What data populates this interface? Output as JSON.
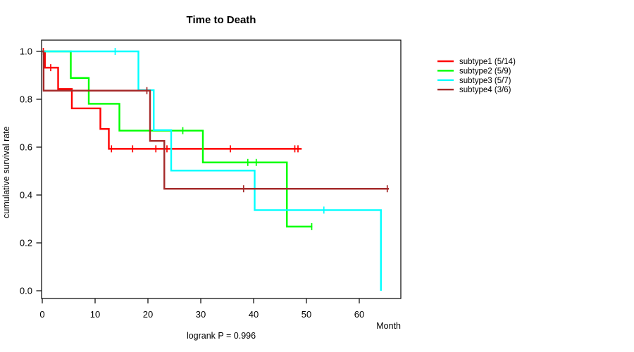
{
  "page": {
    "background": "#FFFFFF"
  },
  "chart_data": {
    "type": "line",
    "subtype": "kaplan-meier-step",
    "title": "Time to Death",
    "xlabel": "Month",
    "ylabel": "cumulative survival rate",
    "footnote": "logrank P = 0.996",
    "xlim": [
      0,
      68
    ],
    "ylim": [
      0.0,
      1.0
    ],
    "xticks": [
      0,
      10,
      20,
      30,
      40,
      50,
      60
    ],
    "xtick_labels": [
      "0",
      "10",
      "20",
      "30",
      "40",
      "50",
      "60"
    ],
    "yticks": [
      0.0,
      0.2,
      0.4,
      0.6,
      0.8,
      1.0
    ],
    "ytick_labels": [
      "0.0",
      "0.2",
      "0.4",
      "0.6",
      "0.8",
      "1.0"
    ],
    "grid": false,
    "legend_position": "outside-right",
    "axis_color": "#000000",
    "series": [
      {
        "name": "subtype1 (5/14)",
        "color": "#FF0000",
        "steps": [
          [
            0,
            1.0
          ],
          [
            0.5,
            0.932
          ],
          [
            3.0,
            0.843
          ],
          [
            5.6,
            0.762
          ],
          [
            11.0,
            0.676
          ],
          [
            12.6,
            0.593
          ],
          [
            49.1,
            0.593
          ]
        ],
        "censor_marks": [
          [
            0.2,
            1.0
          ],
          [
            1.6,
            0.932
          ],
          [
            13.1,
            0.593
          ],
          [
            17.1,
            0.593
          ],
          [
            21.5,
            0.593
          ],
          [
            23.6,
            0.593
          ],
          [
            35.6,
            0.593
          ],
          [
            47.8,
            0.593
          ],
          [
            48.4,
            0.593
          ]
        ]
      },
      {
        "name": "subtype2 (5/9)",
        "color": "#00FF00",
        "steps": [
          [
            0,
            1.0
          ],
          [
            5.4,
            0.889
          ],
          [
            8.8,
            0.781
          ],
          [
            14.6,
            0.669
          ],
          [
            30.4,
            0.536
          ],
          [
            46.3,
            0.268
          ],
          [
            51.1,
            0.268
          ]
        ],
        "censor_marks": [
          [
            26.6,
            0.669
          ],
          [
            38.9,
            0.536
          ],
          [
            40.5,
            0.536
          ],
          [
            51.0,
            0.268
          ]
        ]
      },
      {
        "name": "subtype3 (5/7)",
        "color": "#00FFFF",
        "steps": [
          [
            0,
            1.0
          ],
          [
            18.2,
            0.838
          ],
          [
            21.1,
            0.671
          ],
          [
            24.4,
            0.502
          ],
          [
            40.2,
            0.337
          ],
          [
            64.1,
            0.0
          ]
        ],
        "censor_marks": [
          [
            13.8,
            1.0
          ],
          [
            53.3,
            0.337
          ]
        ]
      },
      {
        "name": "subtype4 (3/6)",
        "color": "#A52A2A",
        "steps": [
          [
            0,
            1.0
          ],
          [
            0.25,
            0.836
          ],
          [
            20.4,
            0.626
          ],
          [
            23.1,
            0.426
          ],
          [
            65.6,
            0.426
          ]
        ],
        "censor_marks": [
          [
            19.8,
            0.836
          ],
          [
            38.1,
            0.426
          ],
          [
            65.3,
            0.426
          ]
        ]
      }
    ]
  }
}
